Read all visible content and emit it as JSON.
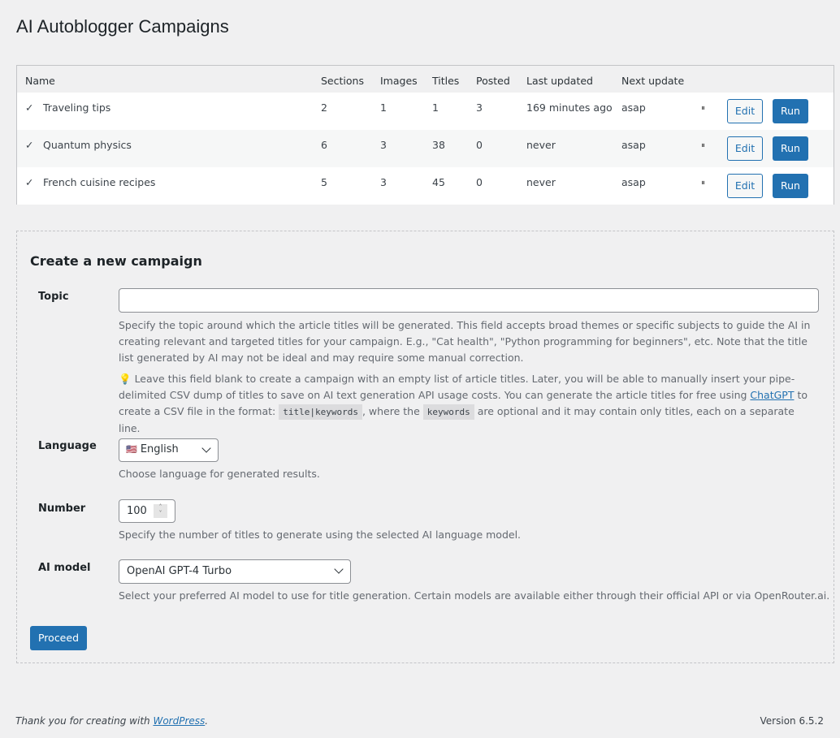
{
  "page": {
    "title": "AI Autoblogger Campaigns"
  },
  "table": {
    "headers": [
      "Name",
      "Sections",
      "Images",
      "Titles",
      "Posted",
      "Last updated",
      "Next update"
    ],
    "rows": [
      {
        "name": "Traveling tips",
        "sections": "2",
        "images": "1",
        "titles": "1",
        "posted": "3",
        "last_updated": "169 minutes ago",
        "next_update": "asap",
        "status_icon": "checkmark-icon",
        "pause": "⏸",
        "edit": "Edit",
        "run": "Run"
      },
      {
        "name": "Quantum physics",
        "sections": "6",
        "images": "3",
        "titles": "38",
        "posted": "0",
        "last_updated": "never",
        "next_update": "asap",
        "status_icon": "checkmark-icon",
        "pause": "⏸",
        "edit": "Edit",
        "run": "Run"
      },
      {
        "name": "French cuisine recipes",
        "sections": "5",
        "images": "3",
        "titles": "45",
        "posted": "0",
        "last_updated": "never",
        "next_update": "asap",
        "status_icon": "checkmark-icon",
        "pause": "⏸",
        "edit": "Edit",
        "run": "Run"
      }
    ]
  },
  "create": {
    "heading": "Create a new campaign",
    "topic": {
      "label": "Topic",
      "value": "",
      "desc": "Specify the topic around which the article titles will be generated. This field accepts broad themes or specific subjects to guide the AI in creating relevant and targeted titles for your campaign. E.g., \"Cat health\", \"Python programming for beginners\", etc. Note that the title list generated by AI may not be ideal and may require some manual correction.",
      "tip_icon": "💡",
      "tip_1": "Leave this field blank to create a campaign with an empty list of article titles. Later, you will be able to manually insert your pipe-delimited CSV dump of titles to save on AI text generation API usage costs. You can generate the article titles for free using ",
      "tip_link": "ChatGPT",
      "tip_2": " to create a CSV file in the format: ",
      "code_1": "title|keywords",
      "tip_3": ", where the ",
      "code_2": "keywords",
      "tip_4": " are optional and it may contain only titles, each on a separate line."
    },
    "language": {
      "label": "Language",
      "value": "English",
      "flag": "🇺🇸",
      "desc": "Choose language for generated results."
    },
    "number": {
      "label": "Number",
      "value": "100",
      "desc": "Specify the number of titles to generate using the selected AI language model."
    },
    "model": {
      "label": "AI model",
      "value": "OpenAI GPT-4 Turbo",
      "desc": "Select your preferred AI model to use for title generation. Certain models are available either through their official API or via OpenRouter.ai."
    },
    "proceed": "Proceed"
  },
  "footer": {
    "thanks": "Thank you for creating with ",
    "link": "WordPress",
    "period": ".",
    "version": "Version 6.5.2"
  },
  "colors": {
    "accent": "#2271b1",
    "bg": "#f0f0f1"
  }
}
